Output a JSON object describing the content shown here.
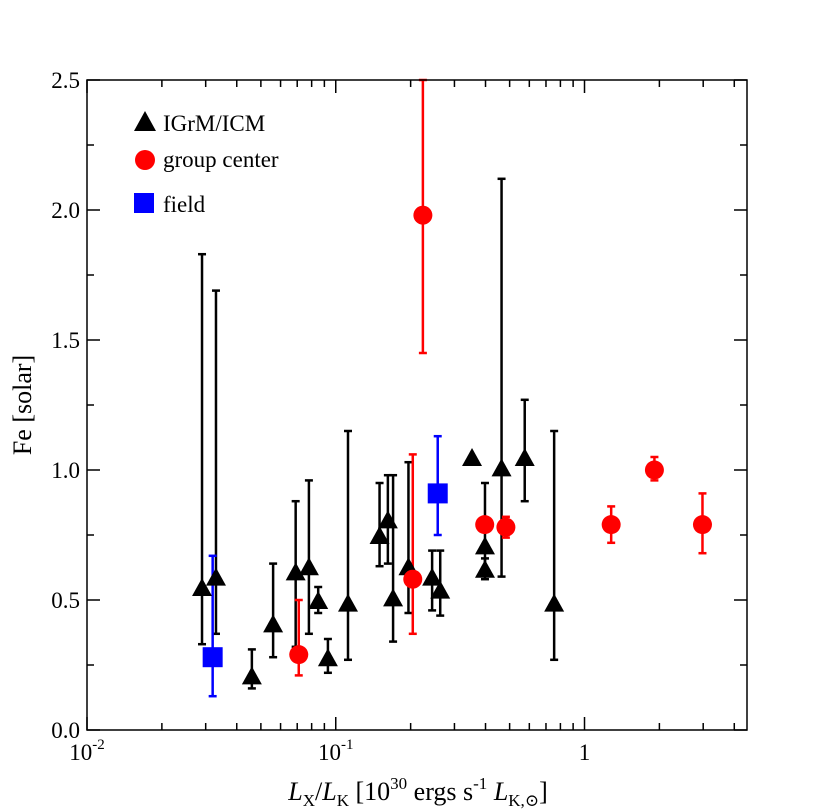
{
  "chart_data": {
    "type": "scatter",
    "xscale": "log",
    "xlim": [
      0.01,
      4.5
    ],
    "ylim": [
      0.0,
      2.5
    ],
    "ylabel": "Fe [solar]",
    "xlabel": {
      "L1": "L",
      "S1": "X",
      "slash": "/",
      "L2": "L",
      "S2": "K",
      "open": " [10",
      "sup1": "30",
      "mid": " ergs s",
      "sup2": "-1",
      "L3": " L",
      "sub3": "K,",
      "sun": "⊙",
      "close": "]"
    },
    "x_ticks": [
      {
        "value": 0.01,
        "label": "10",
        "exp": "-2"
      },
      {
        "value": 0.1,
        "label": "10",
        "exp": "-1"
      },
      {
        "value": 1,
        "label": "1",
        "exp": ""
      }
    ],
    "y_ticks": [
      {
        "value": 0.0,
        "label": "0.0"
      },
      {
        "value": 0.5,
        "label": "0.5"
      },
      {
        "value": 1.0,
        "label": "1.0"
      },
      {
        "value": 1.5,
        "label": "1.5"
      },
      {
        "value": 2.0,
        "label": "2.0"
      },
      {
        "value": 2.5,
        "label": "2.5"
      }
    ],
    "legend": {
      "position": "top-left"
    },
    "series": [
      {
        "name": "IGrM/ICM",
        "marker": "triangle",
        "color": "#000000",
        "points": [
          {
            "x": 0.029,
            "y": 0.55,
            "lo": 0.33,
            "hi": 1.83
          },
          {
            "x": 0.033,
            "y": 0.59,
            "lo": 0.37,
            "hi": 1.69
          },
          {
            "x": 0.046,
            "y": 0.21,
            "lo": 0.16,
            "hi": 0.31
          },
          {
            "x": 0.056,
            "y": 0.41,
            "lo": 0.28,
            "hi": 0.64
          },
          {
            "x": 0.069,
            "y": 0.61,
            "lo": 0.32,
            "hi": 0.88
          },
          {
            "x": 0.078,
            "y": 0.63,
            "lo": 0.37,
            "hi": 0.96
          },
          {
            "x": 0.085,
            "y": 0.5,
            "lo": 0.45,
            "hi": 0.55
          },
          {
            "x": 0.093,
            "y": 0.28,
            "lo": 0.22,
            "hi": 0.35
          },
          {
            "x": 0.112,
            "y": 0.49,
            "lo": 0.27,
            "hi": 1.15
          },
          {
            "x": 0.15,
            "y": 0.75,
            "lo": 0.63,
            "hi": 0.95
          },
          {
            "x": 0.162,
            "y": 0.81,
            "lo": 0.64,
            "hi": 0.98
          },
          {
            "x": 0.17,
            "y": 0.51,
            "lo": 0.34,
            "hi": 0.98
          },
          {
            "x": 0.196,
            "y": 0.63,
            "lo": 0.45,
            "hi": 1.03
          },
          {
            "x": 0.244,
            "y": 0.59,
            "lo": 0.46,
            "hi": 0.69
          },
          {
            "x": 0.263,
            "y": 0.54,
            "lo": 0.44,
            "hi": 0.69
          },
          {
            "x": 0.353,
            "y": 1.05,
            "lo": 1.05,
            "hi": 1.05
          },
          {
            "x": 0.398,
            "y": 0.71,
            "lo": 0.61,
            "hi": 0.95
          },
          {
            "x": 0.398,
            "y": 0.62,
            "lo": 0.58,
            "hi": 0.66
          },
          {
            "x": 0.464,
            "y": 1.01,
            "lo": 0.59,
            "hi": 2.12
          },
          {
            "x": 0.575,
            "y": 1.05,
            "lo": 0.88,
            "hi": 1.27
          },
          {
            "x": 0.755,
            "y": 0.49,
            "lo": 0.27,
            "hi": 1.15
          }
        ]
      },
      {
        "name": "group center",
        "marker": "circle",
        "color": "#ff0000",
        "points": [
          {
            "x": 0.071,
            "y": 0.29,
            "lo": 0.21,
            "hi": 0.5
          },
          {
            "x": 0.204,
            "y": 0.58,
            "lo": 0.37,
            "hi": 1.06
          },
          {
            "x": 0.224,
            "y": 1.98,
            "lo": 1.45,
            "hi": 2.5
          },
          {
            "x": 0.397,
            "y": 0.79,
            "lo": 0.79,
            "hi": 0.79
          },
          {
            "x": 0.483,
            "y": 0.78,
            "lo": 0.74,
            "hi": 0.82
          },
          {
            "x": 1.28,
            "y": 0.79,
            "lo": 0.72,
            "hi": 0.86
          },
          {
            "x": 1.91,
            "y": 1.0,
            "lo": 0.96,
            "hi": 1.05
          },
          {
            "x": 2.98,
            "y": 0.79,
            "lo": 0.68,
            "hi": 0.91
          }
        ]
      },
      {
        "name": "field",
        "marker": "square",
        "color": "#0000ff",
        "points": [
          {
            "x": 0.032,
            "y": 0.28,
            "lo": 0.13,
            "hi": 0.67
          },
          {
            "x": 0.257,
            "y": 0.91,
            "lo": 0.75,
            "hi": 1.13
          }
        ]
      }
    ]
  }
}
